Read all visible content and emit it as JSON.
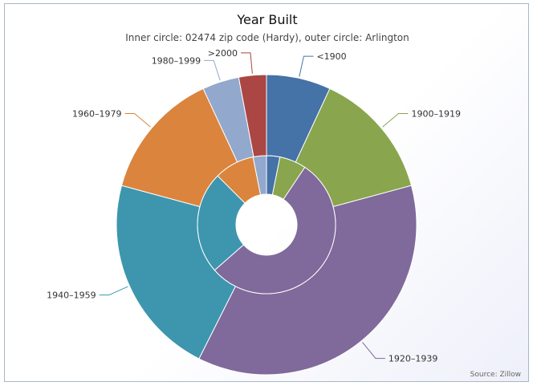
{
  "chart_data": {
    "type": "pie",
    "title": "Year Built",
    "subtitle": "Inner circle: 02474 zip code (Hardy), outer circle: Arlington",
    "source": "Source: Zillow",
    "categories": [
      "<1900",
      "1900–1919",
      "1920–1939",
      "1940–1959",
      "1960–1979",
      "1980–1999",
      ">2000"
    ],
    "colors": [
      "#4572a7",
      "#89a54e",
      "#80699b",
      "#3d96ae",
      "#db843d",
      "#92a8cd",
      "#aa4643"
    ],
    "series": [
      {
        "ring": "inner",
        "values": [
          3,
          6,
          52,
          23,
          9,
          3,
          0
        ]
      },
      {
        "ring": "outer",
        "values": [
          7,
          14,
          37,
          22,
          14,
          4,
          3
        ]
      }
    ]
  }
}
